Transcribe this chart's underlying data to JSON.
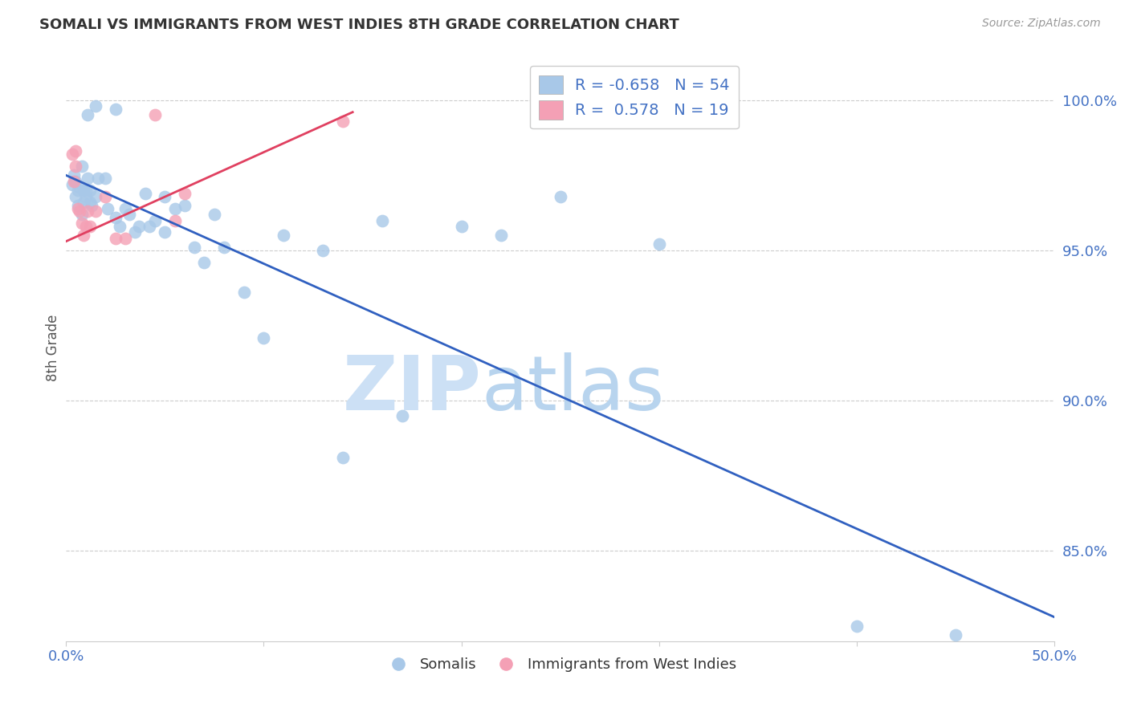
{
  "title": "SOMALI VS IMMIGRANTS FROM WEST INDIES 8TH GRADE CORRELATION CHART",
  "source": "Source: ZipAtlas.com",
  "ylabel": "8th Grade",
  "xlim": [
    0.0,
    50.0
  ],
  "ylim": [
    82.0,
    101.5
  ],
  "yticks": [
    85.0,
    90.0,
    95.0,
    100.0
  ],
  "ytick_labels": [
    "85.0%",
    "90.0%",
    "95.0%",
    "100.0%"
  ],
  "xticks": [
    0.0,
    10.0,
    20.0,
    30.0,
    40.0,
    50.0
  ],
  "xtick_labels": [
    "0.0%",
    "",
    "",
    "",
    "",
    "50.0%"
  ],
  "blue_R": "-0.658",
  "blue_N": "54",
  "pink_R": "0.578",
  "pink_N": "19",
  "legend_label_blue": "Somalis",
  "legend_label_pink": "Immigrants from West Indies",
  "watermark_zip": "ZIP",
  "watermark_atlas": "atlas",
  "blue_scatter_x": [
    1.5,
    2.5,
    0.3,
    0.4,
    0.5,
    0.5,
    0.6,
    0.6,
    0.7,
    0.8,
    0.8,
    0.9,
    0.9,
    1.0,
    1.0,
    1.1,
    1.1,
    1.2,
    1.2,
    1.3,
    1.5,
    1.6,
    2.0,
    2.1,
    2.5,
    2.7,
    3.0,
    3.2,
    3.5,
    3.7,
    4.0,
    4.2,
    4.5,
    5.0,
    5.0,
    5.5,
    6.0,
    6.5,
    7.0,
    7.5,
    8.0,
    9.0,
    10.0,
    11.0,
    13.0,
    14.0,
    16.0,
    17.0,
    20.0,
    22.0,
    25.0,
    30.0,
    40.0,
    45.0
  ],
  "blue_scatter_y": [
    99.8,
    99.7,
    97.2,
    97.5,
    97.3,
    96.8,
    97.0,
    96.5,
    97.1,
    97.8,
    96.2,
    97.0,
    96.6,
    96.8,
    97.0,
    99.5,
    97.4,
    96.6,
    97.0,
    96.5,
    96.8,
    97.4,
    97.4,
    96.4,
    96.1,
    95.8,
    96.4,
    96.2,
    95.6,
    95.8,
    96.9,
    95.8,
    96.0,
    96.8,
    95.6,
    96.4,
    96.5,
    95.1,
    94.6,
    96.2,
    95.1,
    93.6,
    92.1,
    95.5,
    95.0,
    88.1,
    96.0,
    89.5,
    95.8,
    95.5,
    96.8,
    95.2,
    82.5,
    82.2
  ],
  "pink_scatter_x": [
    0.3,
    0.4,
    0.5,
    0.5,
    0.6,
    0.7,
    0.8,
    0.9,
    1.0,
    1.1,
    1.2,
    1.5,
    2.0,
    2.5,
    3.0,
    4.5,
    5.5,
    6.0,
    14.0
  ],
  "pink_scatter_y": [
    98.2,
    97.3,
    97.8,
    98.3,
    96.4,
    96.3,
    95.9,
    95.5,
    95.8,
    96.3,
    95.8,
    96.3,
    96.8,
    95.4,
    95.4,
    99.5,
    96.0,
    96.9,
    99.3
  ],
  "blue_line_x": [
    0.0,
    50.0
  ],
  "blue_line_y": [
    97.5,
    82.8
  ],
  "pink_line_x": [
    0.0,
    14.5
  ],
  "pink_line_y": [
    95.3,
    99.6
  ],
  "blue_color": "#a8c8e8",
  "pink_color": "#f4a0b5",
  "blue_line_color": "#3060c0",
  "pink_line_color": "#e04060",
  "background_color": "#ffffff",
  "grid_color": "#cccccc",
  "title_color": "#333333",
  "axis_color": "#4472c4",
  "watermark_color": "#cce0f5"
}
